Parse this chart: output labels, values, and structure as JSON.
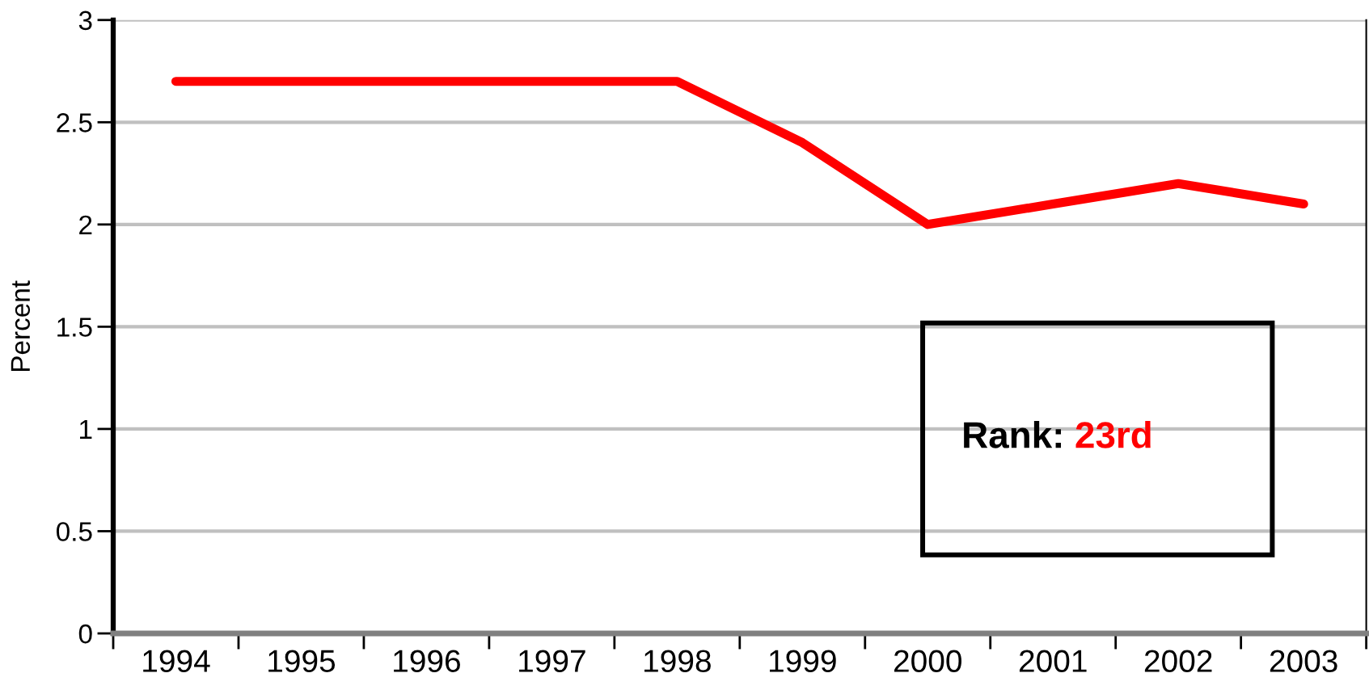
{
  "chart_data": {
    "type": "line",
    "ylabel": "Percent",
    "categories": [
      "1994",
      "1995",
      "1996",
      "1997",
      "1998",
      "1999",
      "2000",
      "2001",
      "2002",
      "2003"
    ],
    "series": [
      {
        "color": "#ff0000",
        "values": [
          2.7,
          2.7,
          2.7,
          2.7,
          2.7,
          2.4,
          2.0,
          2.1,
          2.2,
          2.1
        ]
      }
    ],
    "ylim": [
      0,
      3
    ],
    "yticks": [
      0,
      0.5,
      1,
      1.5,
      2,
      2.5,
      3
    ],
    "grid": "y",
    "annotations": [
      "Rank:",
      "23rd"
    ]
  }
}
